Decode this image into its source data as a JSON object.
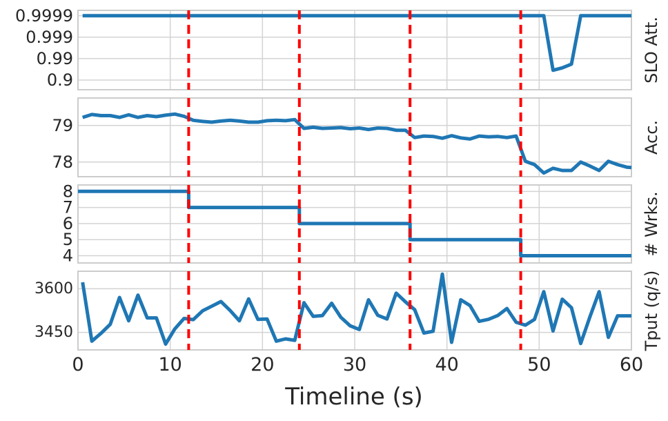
{
  "chart_data": [
    {
      "type": "line",
      "ylabel": "SLO Att.",
      "yscale": "nines",
      "yticks": [
        "0.9999",
        "0.999",
        "0.99",
        "0.9"
      ],
      "x": [
        0.5,
        1.5,
        2.5,
        3.5,
        4.5,
        5.5,
        6.5,
        7.5,
        8.5,
        9.5,
        10.5,
        11.5,
        12.5,
        13.5,
        14.5,
        15.5,
        16.5,
        17.5,
        18.5,
        19.5,
        20.5,
        21.5,
        22.5,
        23.5,
        24.5,
        25.5,
        26.5,
        27.5,
        28.5,
        29.5,
        30.5,
        31.5,
        32.5,
        33.5,
        34.5,
        35.5,
        36.5,
        37.5,
        38.5,
        39.5,
        40.5,
        41.5,
        42.5,
        43.5,
        44.5,
        45.5,
        46.5,
        47.5,
        48.5,
        49.5,
        50.5,
        51.5,
        52.5,
        53.5,
        54.5,
        55.5,
        56.5,
        57.5,
        58.5,
        59.5,
        60
      ],
      "values": [
        0.9999,
        0.9999,
        0.9999,
        0.9999,
        0.9999,
        0.9999,
        0.9999,
        0.9999,
        0.9999,
        0.9999,
        0.9999,
        0.9999,
        0.9999,
        0.9999,
        0.9999,
        0.9999,
        0.9999,
        0.9999,
        0.9999,
        0.9999,
        0.9999,
        0.9999,
        0.9999,
        0.9999,
        0.9999,
        0.9999,
        0.9999,
        0.9999,
        0.9999,
        0.9999,
        0.9999,
        0.9999,
        0.9999,
        0.9999,
        0.9999,
        0.9999,
        0.9999,
        0.9999,
        0.9999,
        0.9999,
        0.9999,
        0.9999,
        0.9999,
        0.9999,
        0.9999,
        0.9999,
        0.9999,
        0.9999,
        0.9999,
        0.9999,
        0.9999,
        0.965,
        0.973,
        0.982,
        0.9999,
        0.9999,
        0.9999,
        0.9999,
        0.9999,
        0.9999,
        0.9999
      ],
      "vlines": [
        12,
        24,
        36,
        48
      ],
      "grid": true
    },
    {
      "type": "line",
      "ylabel": "Acc.",
      "yticks": [
        "79",
        "78"
      ],
      "ylim": [
        77.6,
        79.75
      ],
      "x": [
        0.5,
        1.5,
        2.5,
        3.5,
        4.5,
        5.5,
        6.5,
        7.5,
        8.5,
        9.5,
        10.5,
        11.5,
        12.5,
        13.5,
        14.5,
        15.5,
        16.5,
        17.5,
        18.5,
        19.5,
        20.5,
        21.5,
        22.5,
        23.5,
        24.5,
        25.5,
        26.5,
        27.5,
        28.5,
        29.5,
        30.5,
        31.5,
        32.5,
        33.5,
        34.5,
        35.5,
        36.5,
        37.5,
        38.5,
        39.5,
        40.5,
        41.5,
        42.5,
        43.5,
        44.5,
        45.5,
        46.5,
        47.5,
        48.5,
        49.5,
        50.5,
        51.5,
        52.5,
        53.5,
        54.5,
        55.5,
        56.5,
        57.5,
        58.5,
        59.5,
        60
      ],
      "values": [
        79.22,
        79.3,
        79.27,
        79.27,
        79.22,
        79.29,
        79.22,
        79.27,
        79.24,
        79.28,
        79.31,
        79.25,
        79.14,
        79.11,
        79.09,
        79.12,
        79.14,
        79.12,
        79.09,
        79.09,
        79.13,
        79.14,
        79.13,
        79.16,
        78.92,
        78.95,
        78.92,
        78.93,
        78.94,
        78.91,
        78.93,
        78.89,
        78.93,
        78.92,
        78.87,
        78.87,
        78.67,
        78.71,
        78.7,
        78.65,
        78.72,
        78.66,
        78.63,
        78.71,
        78.69,
        78.7,
        78.67,
        78.71,
        78.02,
        77.93,
        77.7,
        77.83,
        77.77,
        77.77,
        78.0,
        77.89,
        77.77,
        78.02,
        77.93,
        77.86,
        77.85
      ],
      "vlines": [
        12,
        24,
        36,
        48
      ],
      "grid": true
    },
    {
      "type": "line",
      "ylabel": "# Wrks.",
      "yticks": [
        "8",
        "7",
        "6",
        "5",
        "4"
      ],
      "ylim": [
        3.55,
        8.4
      ],
      "x": [
        0,
        12,
        12,
        24,
        24,
        36,
        36,
        48,
        48,
        60
      ],
      "values": [
        8,
        8,
        7,
        7,
        6,
        6,
        5,
        5,
        4,
        4
      ],
      "vlines": [
        12,
        24,
        36,
        48
      ],
      "grid": true
    },
    {
      "type": "line",
      "ylabel": "Tput (q/s)",
      "yticks": [
        "3600",
        "3450"
      ],
      "ylim": [
        3390,
        3660
      ],
      "x": [
        0.5,
        1.5,
        2.5,
        3.5,
        4.5,
        5.5,
        6.5,
        7.5,
        8.5,
        9.5,
        10.5,
        11.5,
        12.5,
        13.5,
        14.5,
        15.5,
        16.5,
        17.5,
        18.5,
        19.5,
        20.5,
        21.5,
        22.5,
        23.5,
        24.5,
        25.5,
        26.5,
        27.5,
        28.5,
        29.5,
        30.5,
        31.5,
        32.5,
        33.5,
        34.5,
        35.5,
        36.5,
        37.5,
        38.5,
        39.5,
        40.5,
        41.5,
        42.5,
        43.5,
        44.5,
        45.5,
        46.5,
        47.5,
        48.5,
        49.5,
        50.5,
        51.5,
        52.5,
        53.5,
        54.5,
        55.5,
        56.5,
        57.5,
        58.5,
        59.5,
        60
      ],
      "values": [
        3622,
        3420,
        3447,
        3478,
        3570,
        3490,
        3578,
        3500,
        3500,
        3410,
        3462,
        3498,
        3494,
        3524,
        3540,
        3556,
        3525,
        3490,
        3565,
        3495,
        3496,
        3420,
        3428,
        3423,
        3552,
        3505,
        3508,
        3550,
        3502,
        3473,
        3460,
        3562,
        3509,
        3496,
        3585,
        3555,
        3528,
        3448,
        3454,
        3650,
        3416,
        3562,
        3542,
        3488,
        3495,
        3508,
        3532,
        3485,
        3475,
        3495,
        3590,
        3455,
        3564,
        3535,
        3412,
        3504,
        3590,
        3433,
        3507,
        3507,
        3507
      ],
      "vlines": [
        12,
        24,
        36,
        48
      ],
      "grid": true
    }
  ],
  "xaxis": {
    "label": "Timeline (s)",
    "xlim": [
      0,
      60
    ],
    "ticks": [
      "0",
      "10",
      "20",
      "30",
      "40",
      "50",
      "60"
    ]
  },
  "colors": {
    "line": "#1f77b4",
    "vline": "#ff0000",
    "grid": "#d3d3d3",
    "spine": "#cccccc"
  }
}
